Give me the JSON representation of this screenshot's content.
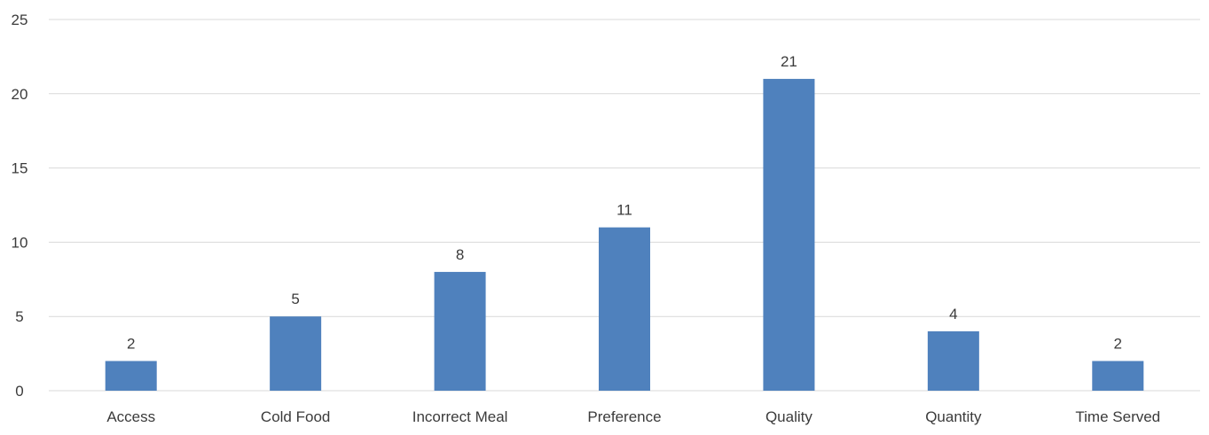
{
  "chart_data": {
    "type": "bar",
    "title": "",
    "xlabel": "",
    "ylabel": "",
    "categories": [
      "Access",
      "Cold Food",
      "Incorrect Meal",
      "Preference",
      "Quality",
      "Quantity",
      "Time Served"
    ],
    "values": [
      2,
      5,
      8,
      11,
      21,
      4,
      2
    ],
    "data_labels": [
      "2",
      "5",
      "8",
      "11",
      "21",
      "4",
      "2"
    ],
    "ylim": [
      0,
      25
    ],
    "yticks": [
      0,
      5,
      10,
      15,
      20,
      25
    ],
    "ytick_labels": [
      "0",
      "5",
      "10",
      "15",
      "20",
      "25"
    ],
    "grid": true,
    "legend": "none",
    "colors": {
      "bar": "#4f81bd",
      "grid": "#d9d9d9",
      "text": "#3b3b3b"
    }
  }
}
